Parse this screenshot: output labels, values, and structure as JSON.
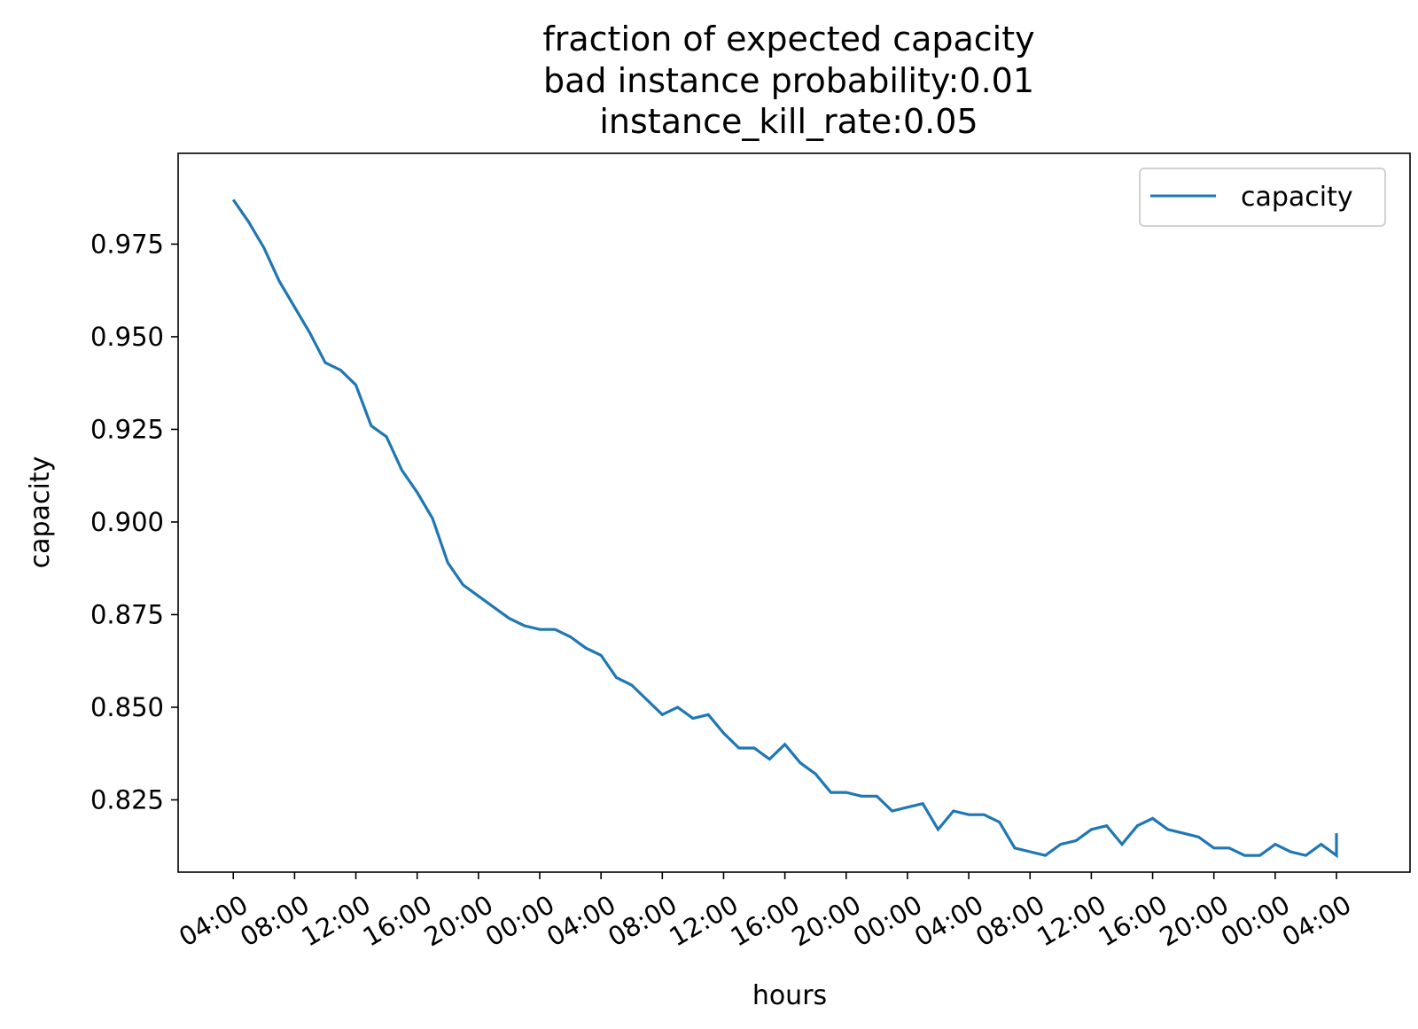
{
  "chart_data": {
    "type": "line",
    "title": [
      "fraction of expected capacity",
      "bad instance probability:0.01",
      "instance_kill_rate:0.05"
    ],
    "xlabel": "hours",
    "ylabel": "capacity",
    "x_ticks": [
      "04:00",
      "08:00",
      "12:00",
      "16:00",
      "20:00",
      "00:00",
      "04:00",
      "08:00",
      "12:00",
      "16:00",
      "20:00",
      "00:00",
      "04:00",
      "08:00",
      "12:00",
      "16:00",
      "20:00",
      "00:00",
      "04:00"
    ],
    "y_ticks": [
      0.825,
      0.85,
      0.875,
      0.9,
      0.925,
      0.95,
      0.975
    ],
    "xlim": [
      -3.6,
      76.8
    ],
    "ylim": [
      0.8055,
      0.9995
    ],
    "grid": false,
    "legend_position": "upper right",
    "series": [
      {
        "name": "capacity",
        "color": "#1f77b4",
        "x": [
          0,
          1,
          2,
          3,
          4,
          5,
          6,
          7,
          8,
          9,
          10,
          11,
          12,
          13,
          14,
          15,
          16,
          17,
          18,
          19,
          20,
          21,
          22,
          23,
          24,
          25,
          26,
          27,
          28,
          29,
          30,
          31,
          32,
          33,
          34,
          35,
          36,
          37,
          38,
          39,
          40,
          41,
          42,
          43,
          44,
          45,
          46,
          47,
          48,
          49,
          50,
          51,
          52,
          53,
          54,
          55,
          56,
          57,
          58,
          59,
          60,
          61,
          62,
          63,
          64,
          65,
          66,
          67,
          68,
          69,
          70,
          71,
          72,
          72
        ],
        "y": [
          0.987,
          0.981,
          0.974,
          0.965,
          0.958,
          0.951,
          0.943,
          0.941,
          0.937,
          0.926,
          0.923,
          0.914,
          0.908,
          0.901,
          0.889,
          0.883,
          0.88,
          0.877,
          0.874,
          0.872,
          0.871,
          0.871,
          0.869,
          0.866,
          0.864,
          0.858,
          0.856,
          0.852,
          0.848,
          0.85,
          0.847,
          0.848,
          0.843,
          0.839,
          0.839,
          0.836,
          0.84,
          0.835,
          0.832,
          0.827,
          0.827,
          0.826,
          0.826,
          0.822,
          0.823,
          0.824,
          0.817,
          0.822,
          0.821,
          0.821,
          0.819,
          0.812,
          0.811,
          0.81,
          0.813,
          0.814,
          0.817,
          0.818,
          0.813,
          0.818,
          0.82,
          0.817,
          0.816,
          0.815,
          0.812,
          0.812,
          0.81,
          0.81,
          0.813,
          0.811,
          0.81,
          0.813,
          0.81,
          0.816
        ]
      }
    ]
  }
}
